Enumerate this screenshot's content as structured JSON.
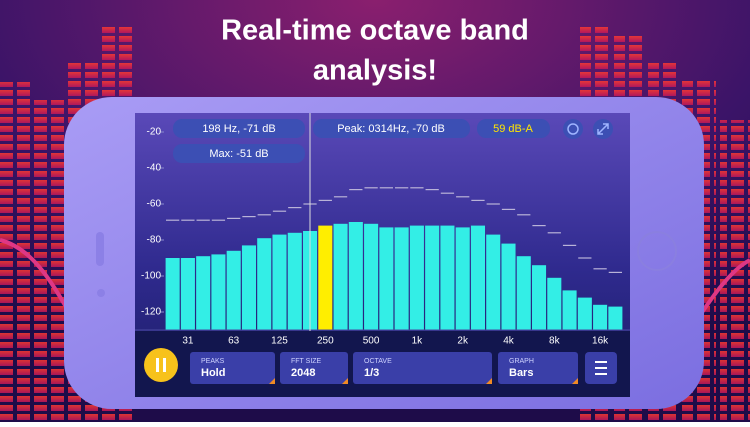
{
  "header": {
    "title_lines": [
      "Real-time octave band",
      "analysis!"
    ]
  },
  "readouts": {
    "cursor": "198 Hz, -71 dB",
    "max": "Max: -51 dB",
    "peak": "Peak: 0314Hz, -70 dB",
    "level": "59 dB-A"
  },
  "controls": [
    {
      "label": "PEAKS",
      "value": "Hold"
    },
    {
      "label": "FFT SIZE",
      "value": "2048"
    },
    {
      "label": "OCTAVE",
      "value": "1/3"
    },
    {
      "label": "GRAPH",
      "value": "Bars"
    }
  ],
  "chart_data": {
    "type": "bar",
    "categories": [
      null,
      "31",
      null,
      null,
      "63",
      null,
      null,
      "125",
      null,
      null,
      "250",
      null,
      null,
      "500",
      null,
      null,
      "1k",
      null,
      null,
      "2k",
      null,
      null,
      "4k",
      null,
      null,
      "8k",
      null,
      null,
      "16k",
      null
    ],
    "series": [
      {
        "color": "#33eee6",
        "values": [
          -90,
          -90,
          -89,
          -88,
          -86,
          -83,
          -79,
          -77,
          -76,
          -75,
          -72,
          -71,
          -70,
          -71,
          -73,
          -73,
          -72,
          -72,
          -72,
          -73,
          -72,
          -77,
          -82,
          -89,
          -94,
          -101,
          -108,
          -112,
          -116,
          -117
        ]
      },
      {
        "color": "#b9b3d8",
        "style": "peak-dash",
        "values": [
          -69,
          -69,
          -69,
          -69,
          -68,
          -67,
          -66,
          -64,
          -62,
          -60,
          -58,
          -56,
          -52,
          -51,
          -51,
          -51,
          -51,
          -52,
          -54,
          -56,
          -58,
          -60,
          -63,
          -66,
          -72,
          -76,
          -83,
          -90,
          -96,
          -98
        ]
      }
    ],
    "highlight": {
      "index": 10,
      "color": "#ffee00"
    },
    "ylim": [
      -130,
      -10
    ],
    "yticks": [
      -20,
      -40,
      -60,
      -80,
      -100,
      -120
    ]
  }
}
